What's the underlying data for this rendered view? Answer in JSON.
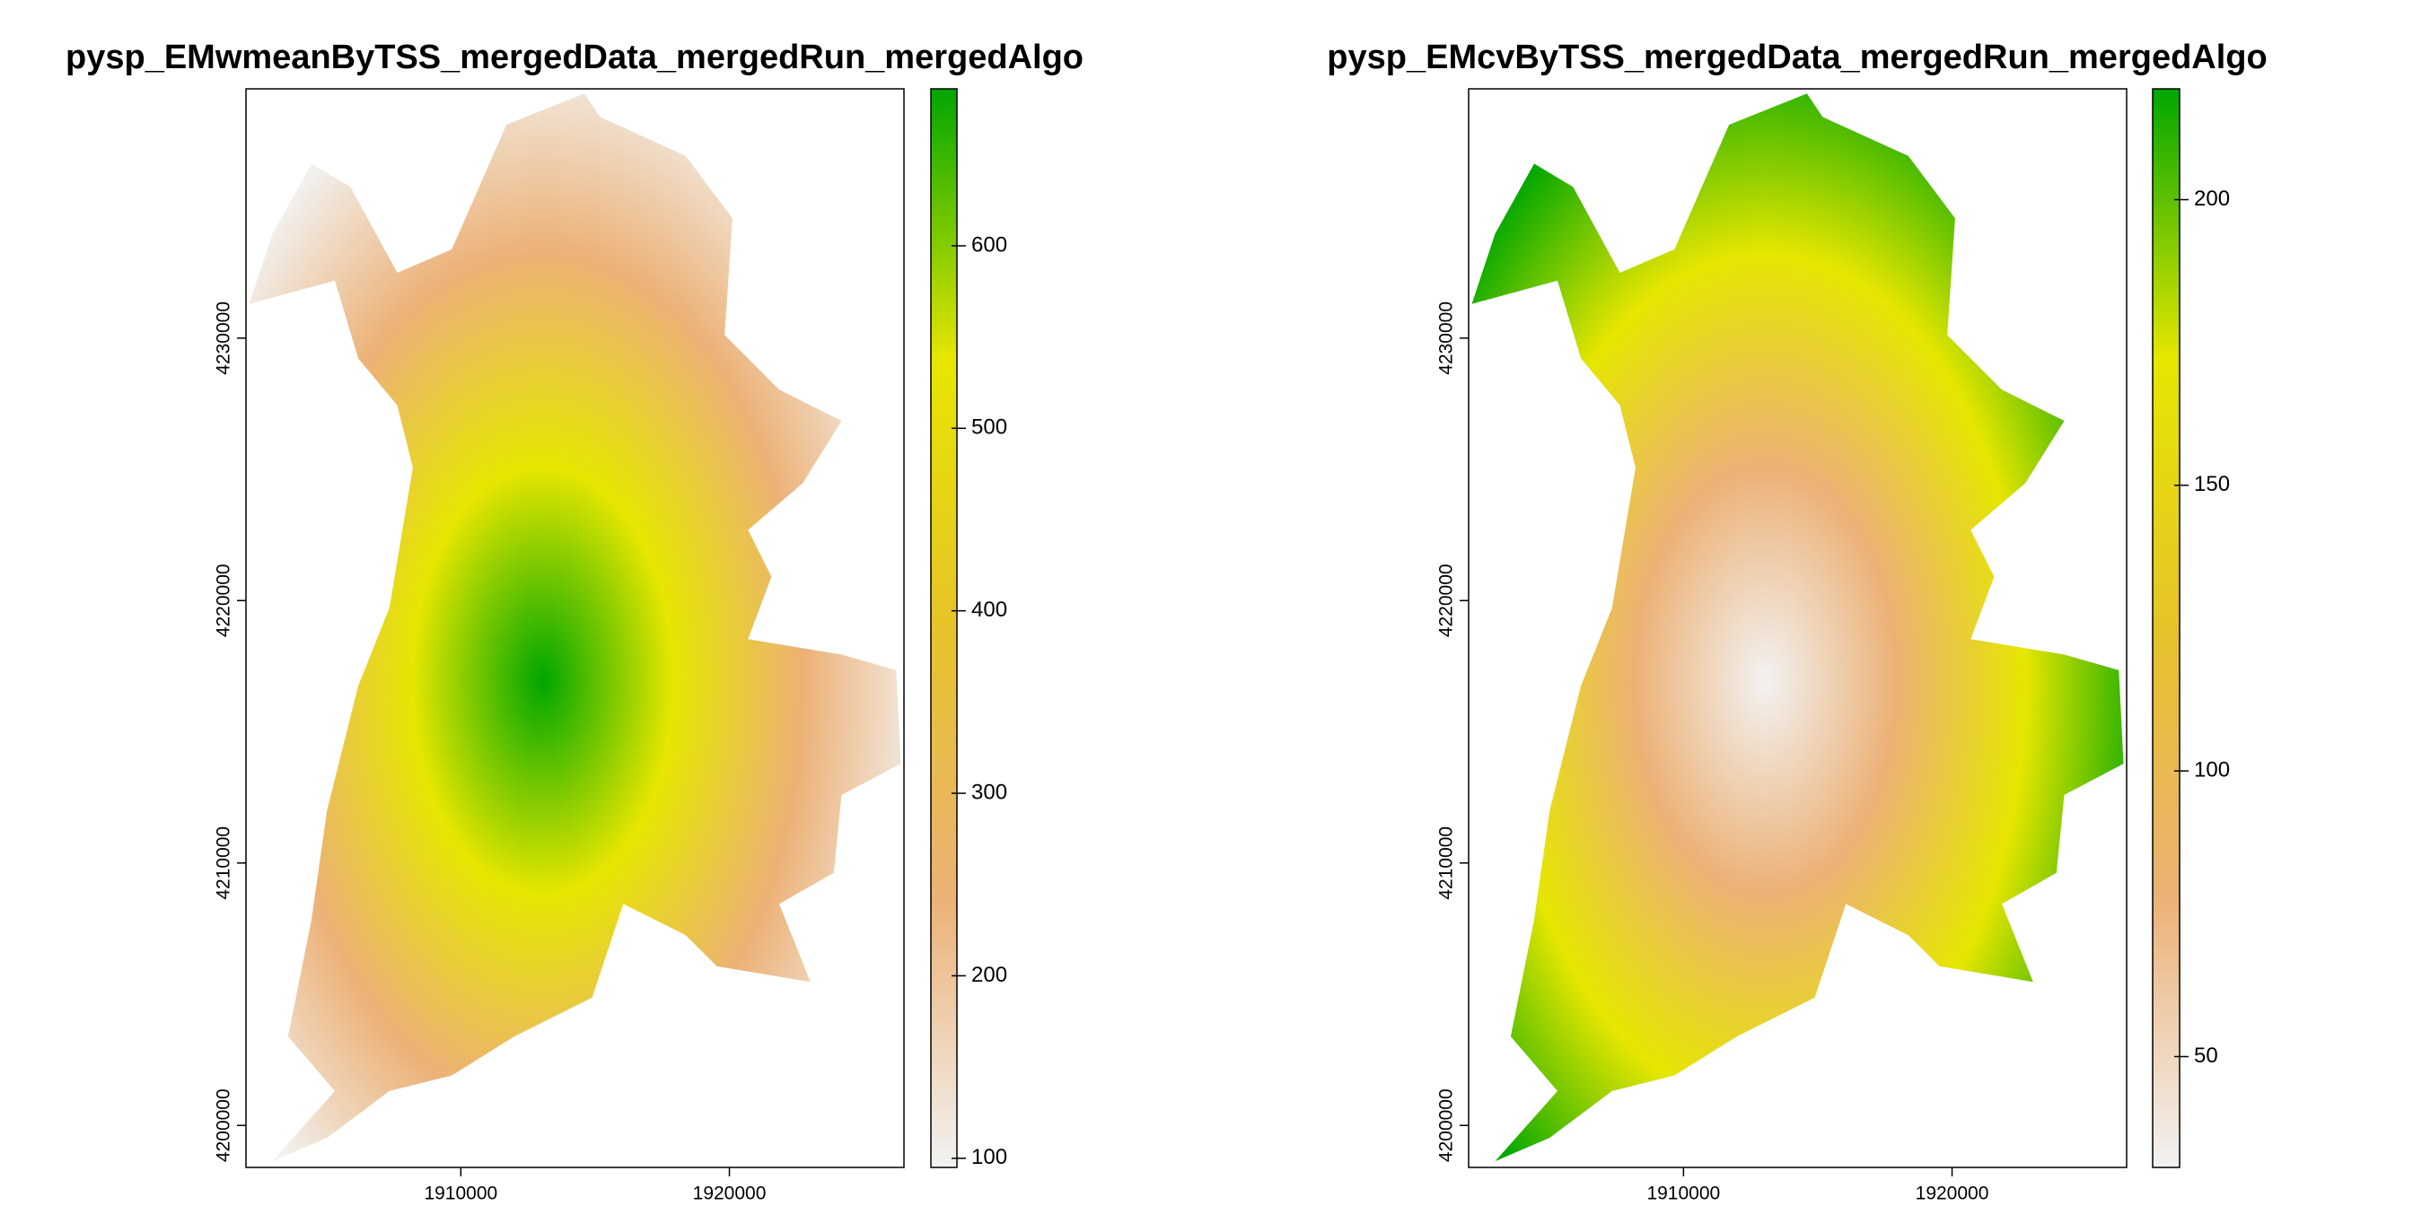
{
  "chart_data": [
    {
      "type": "raster",
      "title": "pysp_EMwmeanByTSS_mergedData_mergedRun_mergedAlgo",
      "xlim": [
        1902000,
        1926500
      ],
      "xticks": [
        1910000,
        1920000
      ],
      "ylim": [
        4198400,
        4239500
      ],
      "yticks": [
        4200000,
        4210000,
        4220000,
        4230000
      ],
      "colorbar": {
        "lim": [
          95,
          686
        ],
        "ticks": [
          100,
          200,
          300,
          400,
          500,
          600
        ],
        "colors": [
          "#f2f2f2",
          "#ecb176",
          "#e6c329",
          "#e6e600",
          "#00a600"
        ]
      }
    },
    {
      "type": "raster",
      "title": "pysp_EMcvByTSS_mergedData_mergedRun_mergedAlgo",
      "xlim": [
        1902000,
        1926500
      ],
      "xticks": [
        1910000,
        1920000
      ],
      "ylim": [
        4198400,
        4239500
      ],
      "yticks": [
        4200000,
        4210000,
        4220000,
        4230000
      ],
      "colorbar": {
        "lim": [
          30.6,
          219.4
        ],
        "ticks": [
          50,
          100,
          150,
          200
        ],
        "colors": [
          "#f2f2f2",
          "#ecb176",
          "#e6c329",
          "#e6e600",
          "#00a600"
        ]
      }
    }
  ]
}
